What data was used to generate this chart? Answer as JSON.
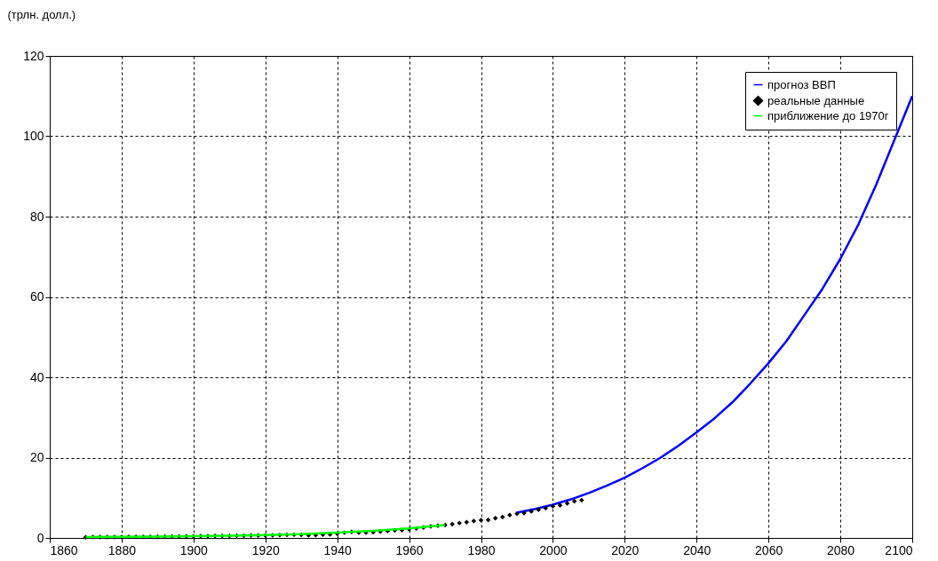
{
  "chart_data": {
    "type": "line",
    "ylabel": "(трлн. долл.)",
    "xlim": [
      1860,
      2100
    ],
    "xticks": [
      1860,
      1880,
      1900,
      1920,
      1940,
      1960,
      1980,
      2000,
      2020,
      2040,
      2060,
      2080,
      2100
    ],
    "ylim": [
      0,
      120
    ],
    "yticks": [
      0,
      20,
      40,
      60,
      80,
      100,
      120
    ],
    "grid": true,
    "legend": "top right",
    "line_style": "solid",
    "series": [
      {
        "name": "прогноз ВВП",
        "color": "#0000ff",
        "x": [
          1990,
          1995,
          2000,
          2005,
          2010,
          2015,
          2020,
          2025,
          2030,
          2035,
          2040,
          2045,
          2050,
          2055,
          2060,
          2065,
          2070,
          2075,
          2080,
          2085,
          2090,
          2095,
          2100
        ],
        "values": [
          6.3,
          7.2,
          8.3,
          9.6,
          11.2,
          13,
          15,
          17.4,
          20,
          23,
          26.3,
          29.8,
          33.8,
          38.5,
          43.5,
          49,
          55.5,
          62,
          69.5,
          78,
          88,
          99,
          110
        ]
      },
      {
        "name": "реальные данные",
        "type": "scatter",
        "marker": "diamond",
        "color": "#000000",
        "x": [
          1870,
          1872,
          1874,
          1876,
          1878,
          1880,
          1882,
          1884,
          1886,
          1888,
          1890,
          1892,
          1894,
          1896,
          1898,
          1900,
          1902,
          1904,
          1906,
          1908,
          1910,
          1912,
          1914,
          1916,
          1918,
          1920,
          1922,
          1924,
          1926,
          1928,
          1930,
          1932,
          1934,
          1936,
          1938,
          1940,
          1942,
          1944,
          1946,
          1948,
          1950,
          1952,
          1954,
          1956,
          1958,
          1960,
          1962,
          1964,
          1966,
          1968,
          1970,
          1972,
          1974,
          1976,
          1978,
          1980,
          1982,
          1984,
          1986,
          1988,
          1990,
          1992,
          1994,
          1996,
          1998,
          2000,
          2002,
          2004,
          2006,
          2008
        ],
        "values": [
          0.19,
          0.2,
          0.21,
          0.22,
          0.23,
          0.25,
          0.26,
          0.27,
          0.28,
          0.3,
          0.32,
          0.33,
          0.34,
          0.36,
          0.38,
          0.4,
          0.42,
          0.45,
          0.48,
          0.48,
          0.52,
          0.56,
          0.55,
          0.6,
          0.62,
          0.6,
          0.65,
          0.72,
          0.76,
          0.8,
          0.75,
          0.65,
          0.72,
          0.85,
          0.9,
          1.05,
          1.3,
          1.5,
          1.3,
          1.35,
          1.45,
          1.6,
          1.7,
          1.9,
          1.95,
          2.15,
          2.35,
          2.6,
          2.85,
          3.05,
          3.2,
          3.45,
          3.7,
          3.9,
          4.2,
          4.4,
          4.5,
          4.9,
          5.2,
          5.7,
          6.0,
          6.2,
          6.6,
          7.0,
          7.4,
          7.9,
          8.1,
          8.6,
          9.1,
          9.4
        ]
      },
      {
        "name": "приближение до 1970г",
        "type": "line",
        "color": "#00ff00",
        "x": [
          1870,
          1880,
          1890,
          1900,
          1910,
          1920,
          1930,
          1940,
          1950,
          1960,
          1970
        ],
        "values": [
          0.2,
          0.25,
          0.32,
          0.42,
          0.55,
          0.7,
          0.95,
          1.3,
          1.75,
          2.35,
          3.2
        ]
      }
    ]
  }
}
